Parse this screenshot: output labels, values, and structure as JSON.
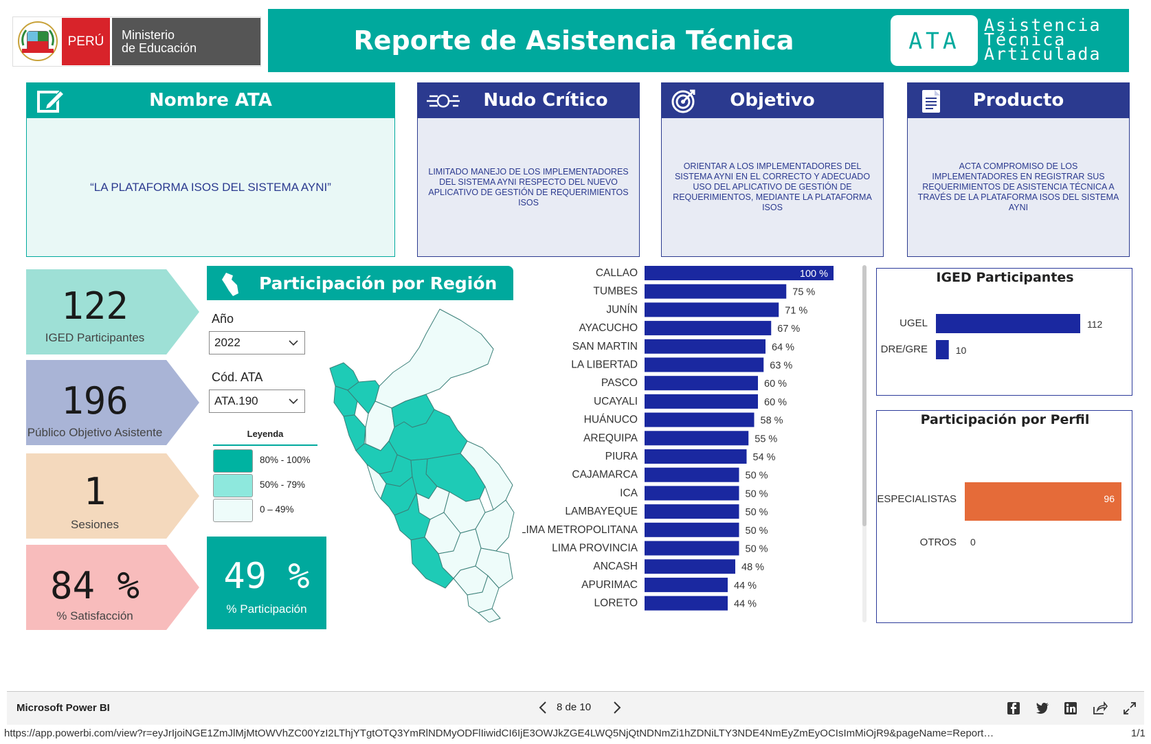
{
  "header": {
    "logo_peru": "PERÚ",
    "logo_ministerio_line1": "Ministerio",
    "logo_ministerio_line2": "de Educación",
    "title": "Reporte de Asistencia Técnica",
    "ata_badge": "ATA",
    "ata_sub_line1": "Asistencia",
    "ata_sub_line2": "Técnica",
    "ata_sub_line3": "Articulada",
    "teal_color": "#00a99d",
    "navy_color": "#2b3a8f"
  },
  "cards": {
    "nombre": {
      "title": "Nombre ATA",
      "icon": "edit-icon",
      "text": "“LA PLATAFORMA ISOS DEL SISTEMA AYNI”"
    },
    "nudo": {
      "title": "Nudo Crítico",
      "icon": "knot-icon",
      "text": "LIMITADO MANEJO DE LOS IMPLEMENTADORES DEL SISTEMA AYNI RESPECTO DEL NUEVO APLICATIVO DE GESTIÓN DE REQUERIMIENTOS ISOS"
    },
    "objetivo": {
      "title": "Objetivo",
      "icon": "target-icon",
      "text": "ORIENTAR A LOS IMPLEMENTADORES DEL SISTEMA AYNI EN EL CORRECTO Y ADECUADO USO DEL APLICATIVO DE GESTIÓN DE REQUERIMIENTOS, MEDIANTE LA PLATAFORMA ISOS"
    },
    "producto": {
      "title": "Producto",
      "icon": "document-icon",
      "text": "ACTA COMPROMISO DE LOS IMPLEMENTADORES EN REGISTRAR SUS REQUERIMIENTOS DE ASISTENCIA TÉCNICA A TRAVÉS DE LA PLATAFORMA ISOS DEL SISTEMA AYNI"
    }
  },
  "kpis": [
    {
      "value": "122",
      "label": "IGED Participantes",
      "color": "#9ee0d6"
    },
    {
      "value": "196",
      "label": "Público Objetivo Asistente",
      "color": "#a9b4d6"
    },
    {
      "value": "1",
      "label": "Sesiones",
      "color": "#f4d9bd"
    },
    {
      "value": "84 %",
      "label": "% Satisfacción",
      "color": "#f8bcbc"
    }
  ],
  "region_panel": {
    "title": "Participación por Región",
    "year_label": "Año",
    "year_value": "2022",
    "code_label": "Cód. ATA",
    "code_value": "ATA.190",
    "legend_title": "Leyenda",
    "legend": [
      {
        "label": "80% - 100%",
        "color": "#00b3a1"
      },
      {
        "label": "50% - 79%",
        "color": "#8ee8dd"
      },
      {
        "label": "0 – 49%",
        "color": "#eefcfa"
      }
    ],
    "participation_value": "49 %",
    "participation_label": "% Participación"
  },
  "chart_data": [
    {
      "type": "bar",
      "orientation": "horizontal",
      "categories": [
        "CALLAO",
        "TUMBES",
        "JUNÍN",
        "AYACUCHO",
        "SAN MARTIN",
        "LA LIBERTAD",
        "PASCO",
        "UCAYALI",
        "HUÁNUCO",
        "AREQUIPA",
        "PIURA",
        "CAJAMARCA",
        "ICA",
        "LAMBAYEQUE",
        "LIMA METROPOLITANA",
        "LIMA PROVINCIA",
        "ANCASH",
        "APURIMAC",
        "LORETO"
      ],
      "values": [
        100,
        75,
        71,
        67,
        64,
        63,
        60,
        60,
        58,
        55,
        54,
        50,
        50,
        50,
        50,
        50,
        48,
        44,
        44
      ],
      "labels": [
        "100 %",
        "75 %",
        "71 %",
        "67 %",
        "64 %",
        "63 %",
        "60 %",
        "60 %",
        "58 %",
        "55 %",
        "54 %",
        "50 %",
        "50 %",
        "50 %",
        "50 %",
        "50 %",
        "48 %",
        "44 %",
        "44 %"
      ],
      "xlim": [
        0,
        100
      ],
      "color": "#1a28a0"
    },
    {
      "type": "bar",
      "orientation": "horizontal",
      "title": "IGED Participantes",
      "categories": [
        "UGEL",
        "DRE/GRE"
      ],
      "values": [
        112,
        10
      ],
      "xlim": [
        0,
        112
      ],
      "color": "#1a28a0"
    },
    {
      "type": "bar",
      "orientation": "horizontal",
      "title": "Participación por Perfil",
      "categories": [
        "ESPECIALISTAS",
        "OTROS"
      ],
      "values": [
        96,
        0
      ],
      "xlim": [
        0,
        96
      ],
      "color": "#e56b39"
    }
  ],
  "footer": {
    "brand": "Microsoft Power BI",
    "page": "8 de 10",
    "url": "https://app.powerbi.com/view?r=eyJrIjoiNGE1ZmJlMjMtOWVhZC00YzI2LThjYTgtOTQ3YmRlNDMyODFlIiwidCI6IjE3OWJkZGE4LWQ5NjQtNDNmZi1hZDNiLTY3NDE4NmEyZmEyOCIsImMiOjR9&pageName=Report…",
    "page_count": "1/1"
  }
}
